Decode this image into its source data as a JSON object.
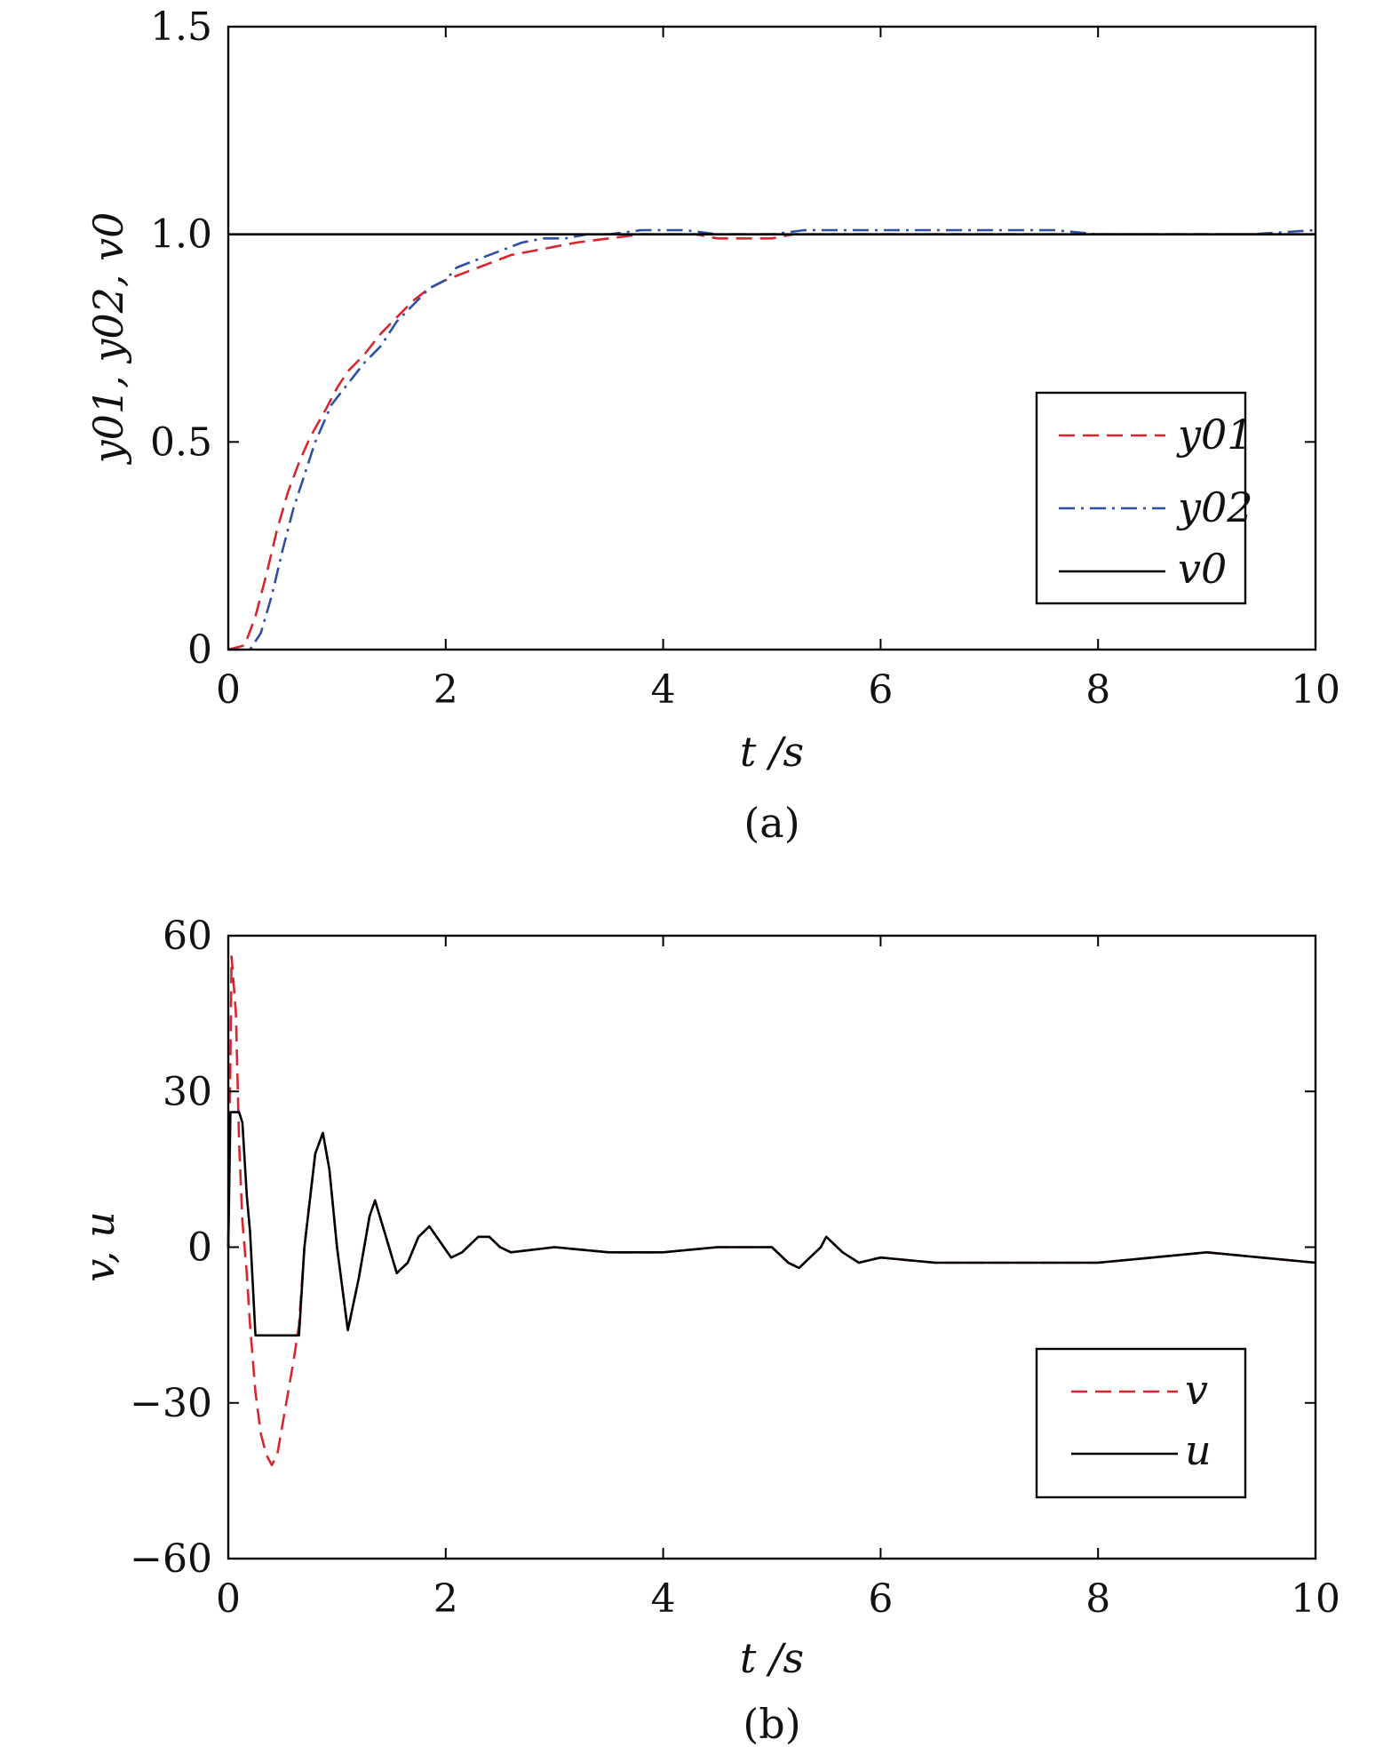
{
  "chart_data": [
    {
      "type": "line",
      "panel": "a",
      "caption": "(a)",
      "xlabel": "t /s",
      "ylabel": "y01, y02, v0",
      "xlim": [
        0,
        10
      ],
      "ylim": [
        0,
        1.5
      ],
      "xticks": [
        0,
        2,
        4,
        6,
        8,
        10
      ],
      "xtick_labels": [
        "0",
        "2",
        "4",
        "6",
        "8",
        "10"
      ],
      "yticks": [
        0,
        0.5,
        1.0,
        1.5
      ],
      "ytick_labels": [
        "0",
        "0.5",
        "1.0",
        "1.5"
      ],
      "grid": false,
      "legend_position": "bottom-right",
      "series": [
        {
          "name": "y01",
          "color": "#d7262e",
          "style": "dashed",
          "x": [
            0,
            0.15,
            0.25,
            0.35,
            0.45,
            0.55,
            0.65,
            0.75,
            0.9,
            1.0,
            1.1,
            1.25,
            1.4,
            1.55,
            1.7,
            1.85,
            2.0,
            2.2,
            2.4,
            2.6,
            2.8,
            3.0,
            3.2,
            3.5,
            3.8,
            4.0,
            4.3,
            4.5,
            5.0,
            5.2,
            5.5,
            6.0,
            7.0,
            7.5,
            7.7,
            8.0,
            9.0,
            9.4,
            10.0
          ],
          "y": [
            0,
            0.01,
            0.08,
            0.18,
            0.29,
            0.38,
            0.45,
            0.51,
            0.58,
            0.63,
            0.67,
            0.71,
            0.76,
            0.8,
            0.84,
            0.87,
            0.89,
            0.91,
            0.93,
            0.95,
            0.96,
            0.97,
            0.98,
            0.99,
            1.0,
            1.0,
            1.0,
            0.99,
            0.99,
            1.0,
            1.0,
            1.0,
            1.0,
            1.0,
            1.0,
            1.0,
            1.0,
            1.0,
            1.0
          ]
        },
        {
          "name": "y02",
          "color": "#2e4fa3",
          "style": "dashdot",
          "x": [
            0,
            0.2,
            0.3,
            0.4,
            0.5,
            0.6,
            0.7,
            0.8,
            0.95,
            1.1,
            1.25,
            1.4,
            1.55,
            1.7,
            1.85,
            2.0,
            2.1,
            2.3,
            2.5,
            2.7,
            2.9,
            3.1,
            3.3,
            3.5,
            3.8,
            4.2,
            4.5,
            5.0,
            5.3,
            6.0,
            7.0,
            7.6,
            8.0,
            9.0,
            9.4,
            10.0
          ],
          "y": [
            0,
            0.0,
            0.04,
            0.13,
            0.24,
            0.34,
            0.42,
            0.5,
            0.59,
            0.64,
            0.69,
            0.73,
            0.79,
            0.83,
            0.87,
            0.89,
            0.92,
            0.94,
            0.96,
            0.98,
            0.99,
            0.99,
            1.0,
            1.0,
            1.01,
            1.01,
            1.0,
            1.0,
            1.01,
            1.01,
            1.01,
            1.01,
            1.0,
            1.0,
            1.0,
            1.01
          ]
        },
        {
          "name": "v0",
          "color": "#000000",
          "style": "solid",
          "x": [
            0,
            10
          ],
          "y": [
            1.0,
            1.0
          ]
        }
      ]
    },
    {
      "type": "line",
      "panel": "b",
      "caption": "(b)",
      "xlabel": "t /s",
      "ylabel": "v, u",
      "xlim": [
        0,
        10
      ],
      "ylim": [
        -60,
        60
      ],
      "xticks": [
        0,
        2,
        4,
        6,
        8,
        10
      ],
      "xtick_labels": [
        "0",
        "2",
        "4",
        "6",
        "8",
        "10"
      ],
      "yticks": [
        -60,
        -30,
        0,
        30,
        60
      ],
      "ytick_labels": [
        "−60",
        "−30",
        "0",
        "30",
        "60"
      ],
      "grid": false,
      "legend_position": "bottom-right",
      "series": [
        {
          "name": "v",
          "color": "#d7262e",
          "style": "dashed",
          "x": [
            0,
            0.03,
            0.07,
            0.1,
            0.13,
            0.17,
            0.2,
            0.25,
            0.3,
            0.35,
            0.4,
            0.45,
            0.5,
            0.55,
            0.6,
            0.65,
            0.7,
            0.8,
            0.87,
            0.93,
            1.0,
            1.05,
            1.1,
            1.2,
            1.3,
            1.35,
            1.45,
            1.55,
            1.65,
            1.75,
            1.85,
            1.95,
            2.05,
            2.15,
            2.3,
            2.4,
            2.5,
            2.6,
            3.0,
            3.5,
            4.0,
            4.5,
            4.8,
            5.0,
            5.15,
            5.25,
            5.35,
            5.45,
            5.5,
            5.65,
            5.8,
            6.0,
            6.5,
            7.0,
            7.5,
            8.0,
            8.5,
            9.0,
            9.5,
            10.0
          ],
          "y": [
            0,
            56,
            45,
            20,
            5,
            -5,
            -15,
            -28,
            -36,
            -40,
            -42,
            -40,
            -34,
            -28,
            -22,
            -15,
            0,
            18,
            22,
            15,
            0,
            -8,
            -16,
            -6,
            6,
            9,
            2,
            -5,
            -3,
            2,
            4,
            1,
            -2,
            -1,
            2,
            2,
            0,
            -1,
            0,
            -1,
            -1,
            0,
            0,
            0,
            -3,
            -4,
            -2,
            0,
            2,
            -1,
            -3,
            -2,
            -3,
            -3,
            -3,
            -3,
            -2,
            -1,
            -2,
            -3
          ]
        },
        {
          "name": "u",
          "color": "#000000",
          "style": "solid",
          "x": [
            0,
            0.02,
            0.1,
            0.13,
            0.17,
            0.2,
            0.25,
            0.35,
            0.5,
            0.6,
            0.65,
            0.7,
            0.8,
            0.87,
            0.93,
            1.0,
            1.05,
            1.1,
            1.2,
            1.3,
            1.35,
            1.45,
            1.55,
            1.65,
            1.75,
            1.85,
            1.95,
            2.05,
            2.15,
            2.3,
            2.4,
            2.5,
            2.6,
            3.0,
            3.5,
            4.0,
            4.5,
            4.8,
            5.0,
            5.15,
            5.25,
            5.35,
            5.45,
            5.5,
            5.65,
            5.8,
            6.0,
            6.5,
            7.0,
            7.5,
            8.0,
            8.5,
            9.0,
            9.5,
            10.0
          ],
          "y": [
            0,
            26,
            26,
            24,
            10,
            3,
            -17,
            -17,
            -17,
            -17,
            -17,
            0,
            18,
            22,
            15,
            0,
            -8,
            -16,
            -6,
            6,
            9,
            2,
            -5,
            -3,
            2,
            4,
            1,
            -2,
            -1,
            2,
            2,
            0,
            -1,
            0,
            -1,
            -1,
            0,
            0,
            0,
            -3,
            -4,
            -2,
            0,
            2,
            -1,
            -3,
            -2,
            -3,
            -3,
            -3,
            -3,
            -2,
            -1,
            -2,
            -3
          ]
        }
      ]
    }
  ]
}
